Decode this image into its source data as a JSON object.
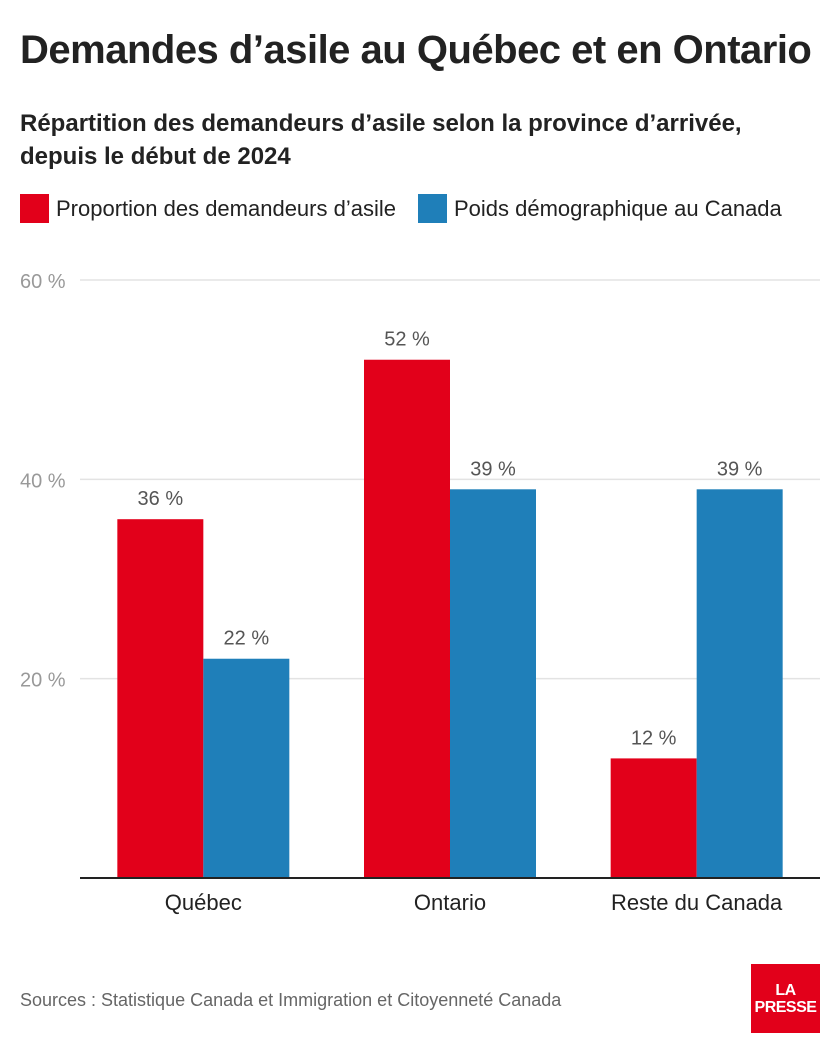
{
  "header": {
    "title": "Demandes d’asile au Québec et en Ontario",
    "subtitle": "Répartition des demandeurs d’asile selon la province d’arrivée, depuis le début de 2024"
  },
  "colors": {
    "series_red": "#e2001a",
    "series_blue": "#1f7fb9",
    "logo_bg": "#e2001a"
  },
  "footer": {
    "source": "Sources : Statistique Canada et Immigration et Citoyenneté Canada",
    "logo_line1": "LA",
    "logo_line2": "PRESSE"
  },
  "chart_data": {
    "type": "bar",
    "title": "Demandes d’asile au Québec et en Ontario",
    "subtitle": "Répartition des demandeurs d’asile selon la province d’arrivée, depuis le début de 2024",
    "categories": [
      "Québec",
      "Ontario",
      "Reste du Canada"
    ],
    "series": [
      {
        "name": "Proportion des demandeurs d’asile",
        "values": [
          36,
          52,
          12
        ],
        "color": "#e2001a"
      },
      {
        "name": "Poids démographique au Canada",
        "values": [
          22,
          39,
          39
        ],
        "color": "#1f7fb9"
      }
    ],
    "value_labels": [
      [
        "36 %",
        "52 %",
        "12 %"
      ],
      [
        "22 %",
        "39 %",
        "39 %"
      ]
    ],
    "ylim": [
      0,
      60
    ],
    "yticks": [
      20,
      40,
      60
    ],
    "ytick_labels": [
      "20 %",
      "40 %",
      "60 %"
    ],
    "grid": true,
    "legend_position": "top-left"
  }
}
